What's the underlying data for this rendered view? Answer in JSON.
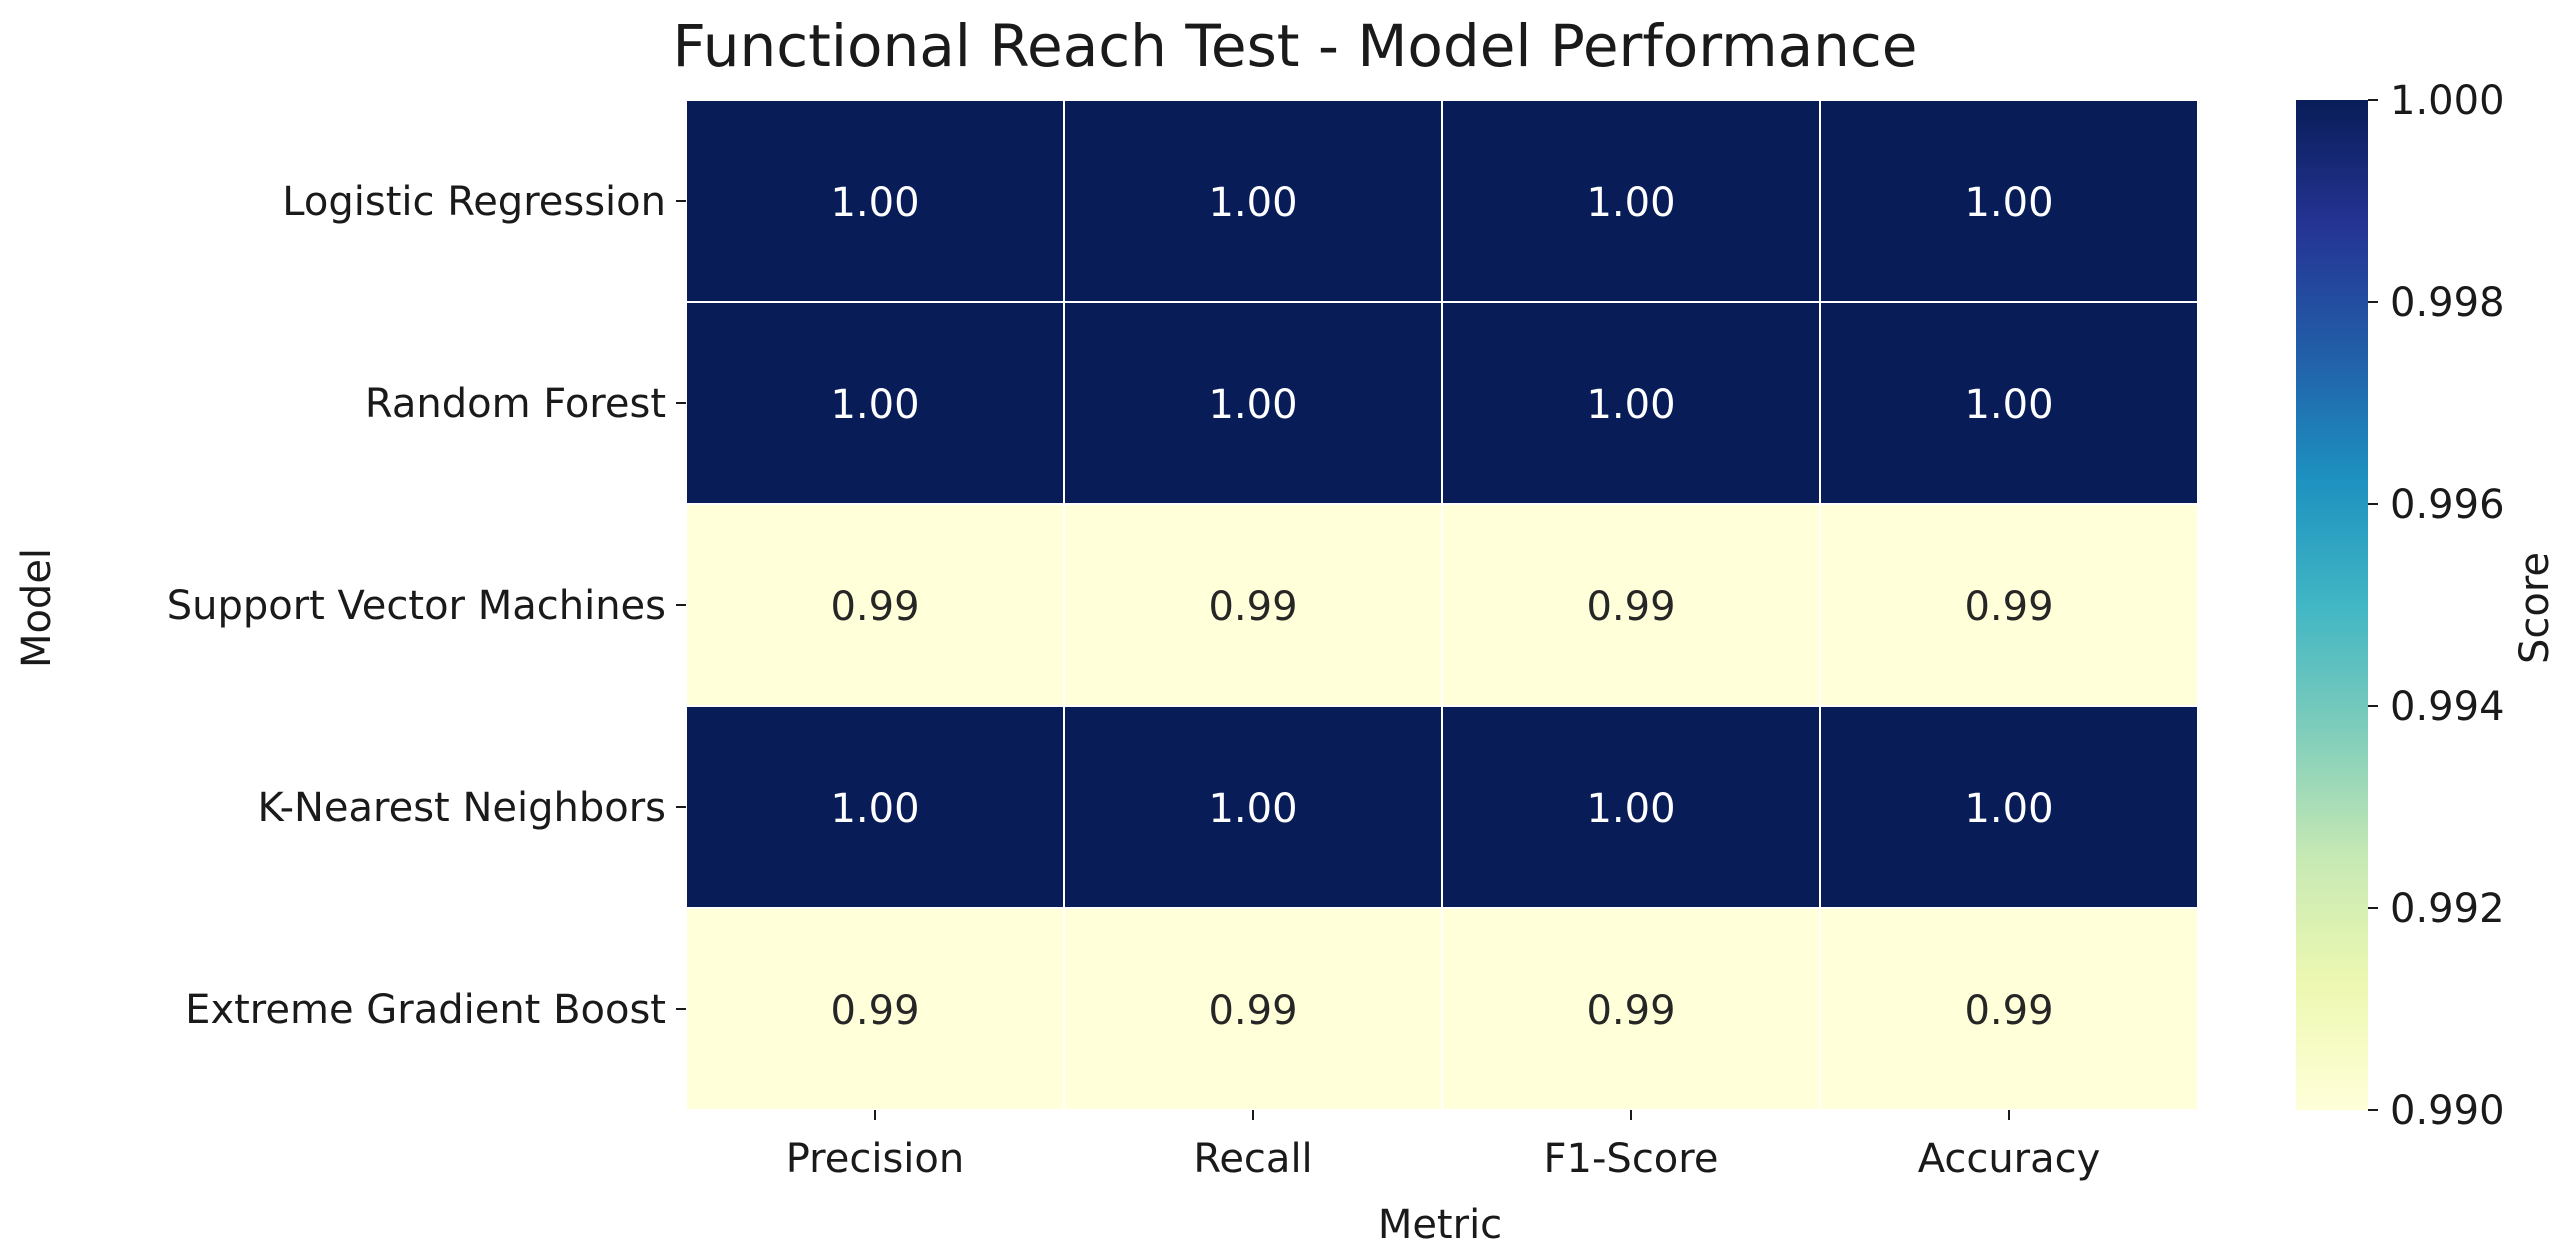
{
  "chart_data": {
    "type": "heatmap",
    "title": "Functional Reach Test - Model Performance",
    "xlabel": "Metric",
    "ylabel": "Model",
    "colorbar_label": "Score",
    "x_categories": [
      "Precision",
      "Recall",
      "F1-Score",
      "Accuracy"
    ],
    "y_categories": [
      "Logistic Regression",
      "Random Forest",
      "Support Vector Machines",
      "K-Nearest Neighbors",
      "Extreme Gradient Boost"
    ],
    "values": [
      [
        1.0,
        1.0,
        1.0,
        1.0
      ],
      [
        1.0,
        1.0,
        1.0,
        1.0
      ],
      [
        0.99,
        0.99,
        0.99,
        0.99
      ],
      [
        1.0,
        1.0,
        1.0,
        1.0
      ],
      [
        0.99,
        0.99,
        0.99,
        0.99
      ]
    ],
    "annotations": [
      [
        "1.00",
        "1.00",
        "1.00",
        "1.00"
      ],
      [
        "1.00",
        "1.00",
        "1.00",
        "1.00"
      ],
      [
        "0.99",
        "0.99",
        "0.99",
        "0.99"
      ],
      [
        "1.00",
        "1.00",
        "1.00",
        "1.00"
      ],
      [
        "0.99",
        "0.99",
        "0.99",
        "0.99"
      ]
    ],
    "colorbar_range": [
      0.99,
      1.0
    ],
    "colorbar_ticks": [
      "0.990",
      "0.992",
      "0.994",
      "0.996",
      "0.998",
      "1.000"
    ],
    "colormap": "YlGnBu",
    "colormap_stops": [
      "#ffffd9",
      "#edf8b1",
      "#c7e9b4",
      "#7fcdbb",
      "#41b6c4",
      "#1d91c0",
      "#225ea8",
      "#253494",
      "#081d58"
    ],
    "high_text_color": "#ffffff",
    "low_text_color": "#262626"
  }
}
